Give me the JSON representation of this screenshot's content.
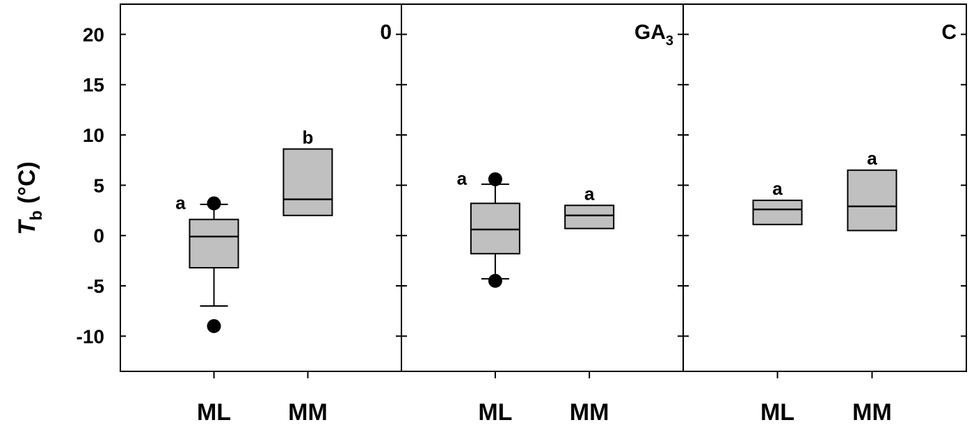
{
  "chart_data": {
    "type": "box",
    "ylabel": {
      "main": "T",
      "sub": "b",
      "unit": " (°C)"
    },
    "ylim": [
      -13.5,
      23
    ],
    "yticks": [
      -10,
      -5,
      0,
      5,
      10,
      15,
      20
    ],
    "panels": [
      {
        "label": "0",
        "label_sub": "",
        "categories": [
          "ML",
          "MM"
        ],
        "boxes": [
          {
            "category": "ML",
            "q1": -3.2,
            "median": -0.1,
            "q3": 1.6,
            "whisker_low": -7.0,
            "whisker_high": 3.1,
            "outliers": [
              -9.0,
              3.2
            ],
            "letter": "a"
          },
          {
            "category": "MM",
            "q1": 2.0,
            "median": 3.6,
            "q3": 8.6,
            "whisker_low": null,
            "whisker_high": null,
            "outliers": [],
            "letter": "b"
          }
        ]
      },
      {
        "label": "GA",
        "label_sub": "3",
        "categories": [
          "ML",
          "MM"
        ],
        "boxes": [
          {
            "category": "ML",
            "q1": -1.8,
            "median": 0.6,
            "q3": 3.2,
            "whisker_low": -4.3,
            "whisker_high": 5.1,
            "outliers": [
              -4.5,
              5.6
            ],
            "letter": "a"
          },
          {
            "category": "MM",
            "q1": 0.7,
            "median": 2.0,
            "q3": 3.0,
            "whisker_low": null,
            "whisker_high": null,
            "outliers": [],
            "letter": "a"
          }
        ]
      },
      {
        "label": "C",
        "label_sub": "",
        "categories": [
          "ML",
          "MM"
        ],
        "boxes": [
          {
            "category": "ML",
            "q1": 1.1,
            "median": 2.6,
            "q3": 3.5,
            "whisker_low": null,
            "whisker_high": null,
            "outliers": [],
            "letter": "a"
          },
          {
            "category": "MM",
            "q1": 0.5,
            "median": 2.9,
            "q3": 6.5,
            "whisker_low": null,
            "whisker_high": null,
            "outliers": [],
            "letter": "a"
          }
        ]
      }
    ],
    "colors": {
      "box_fill": "#c0c0c0",
      "line": "#000000",
      "outlier": "#000000"
    }
  }
}
